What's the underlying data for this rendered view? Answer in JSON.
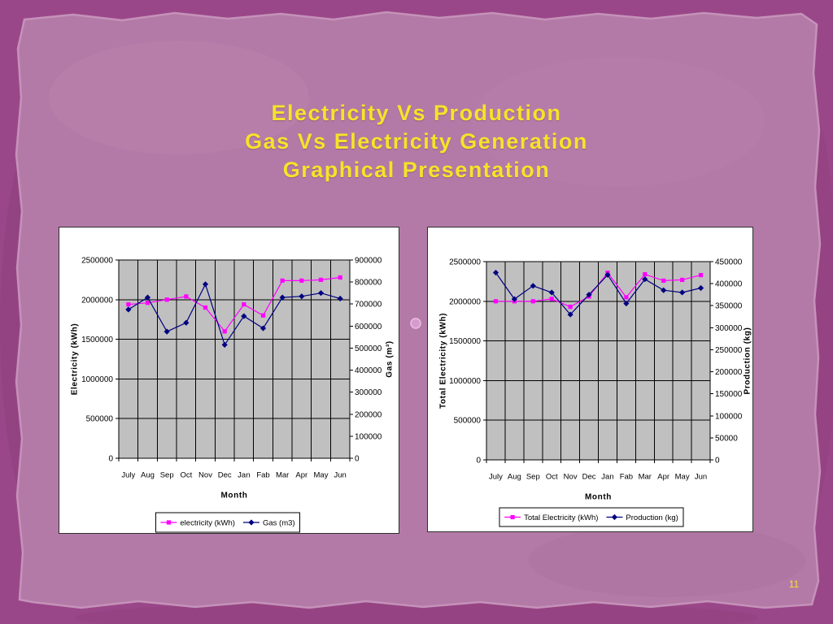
{
  "slide": {
    "title_lines": [
      "Electricity Vs Production",
      "Gas Vs Electricity Generation",
      "Graphical Presentation"
    ],
    "page_number": "11"
  },
  "colors": {
    "frame": "#9a4789",
    "paper": "#b47aa7",
    "title": "#f4e42a",
    "plot_bg": "#c0c0c0",
    "grid": "#000000"
  },
  "chart_data": [
    {
      "type": "line",
      "categories": [
        "July",
        "Aug",
        "Sep",
        "Oct",
        "Nov",
        "Dec",
        "Jan",
        "Fab",
        "Mar",
        "Apr",
        "May",
        "Jun"
      ],
      "xlabel": "Month",
      "ylabel": "Electricity (kWh)",
      "y2label": "Gas (m³)",
      "ylim": [
        0,
        2500000
      ],
      "yticks": [
        0,
        500000,
        1000000,
        1500000,
        2000000,
        2500000
      ],
      "y2lim": [
        0,
        900000
      ],
      "y2ticks": [
        0,
        100000,
        200000,
        300000,
        400000,
        500000,
        600000,
        700000,
        800000,
        900000
      ],
      "grid": true,
      "legend": "bottom",
      "series": [
        {
          "name": "electricity (kWh)",
          "secondary_axis": false,
          "color": "#ff00ff",
          "marker": "square",
          "values": [
            1940000,
            1960000,
            2000000,
            2040000,
            1900000,
            1600000,
            1940000,
            1800000,
            2240000,
            2240000,
            2250000,
            2280000
          ]
        },
        {
          "name": "Gas (m3)",
          "secondary_axis": true,
          "color": "#000080",
          "marker": "diamond",
          "values": [
            675000,
            730000,
            575000,
            615000,
            790000,
            515000,
            645000,
            590000,
            730000,
            735000,
            750000,
            725000
          ]
        }
      ]
    },
    {
      "type": "line",
      "categories": [
        "July",
        "Aug",
        "Sep",
        "Oct",
        "Nov",
        "Dec",
        "Jan",
        "Fab",
        "Mar",
        "Apr",
        "May",
        "Jun"
      ],
      "xlabel": "Month",
      "ylabel": "Total Electricity (kWh)",
      "y2label": "Production (kg)",
      "ylim": [
        0,
        2500000
      ],
      "yticks": [
        0,
        500000,
        1000000,
        1500000,
        2000000,
        2500000
      ],
      "y2lim": [
        0,
        450000
      ],
      "y2ticks": [
        0,
        50000,
        100000,
        150000,
        200000,
        250000,
        300000,
        350000,
        400000,
        450000
      ],
      "grid": true,
      "legend": "bottom",
      "series": [
        {
          "name": "Total Electricity (kWh)",
          "secondary_axis": false,
          "color": "#ff00ff",
          "marker": "square",
          "values": [
            2000000,
            2000000,
            2000000,
            2030000,
            1930000,
            2060000,
            2360000,
            2050000,
            2340000,
            2260000,
            2270000,
            2330000
          ]
        },
        {
          "name": "Production (kg)",
          "secondary_axis": true,
          "color": "#000080",
          "marker": "diamond",
          "values": [
            425000,
            365000,
            395000,
            380000,
            330000,
            375000,
            420000,
            355000,
            410000,
            385000,
            380000,
            390000
          ]
        }
      ]
    }
  ]
}
